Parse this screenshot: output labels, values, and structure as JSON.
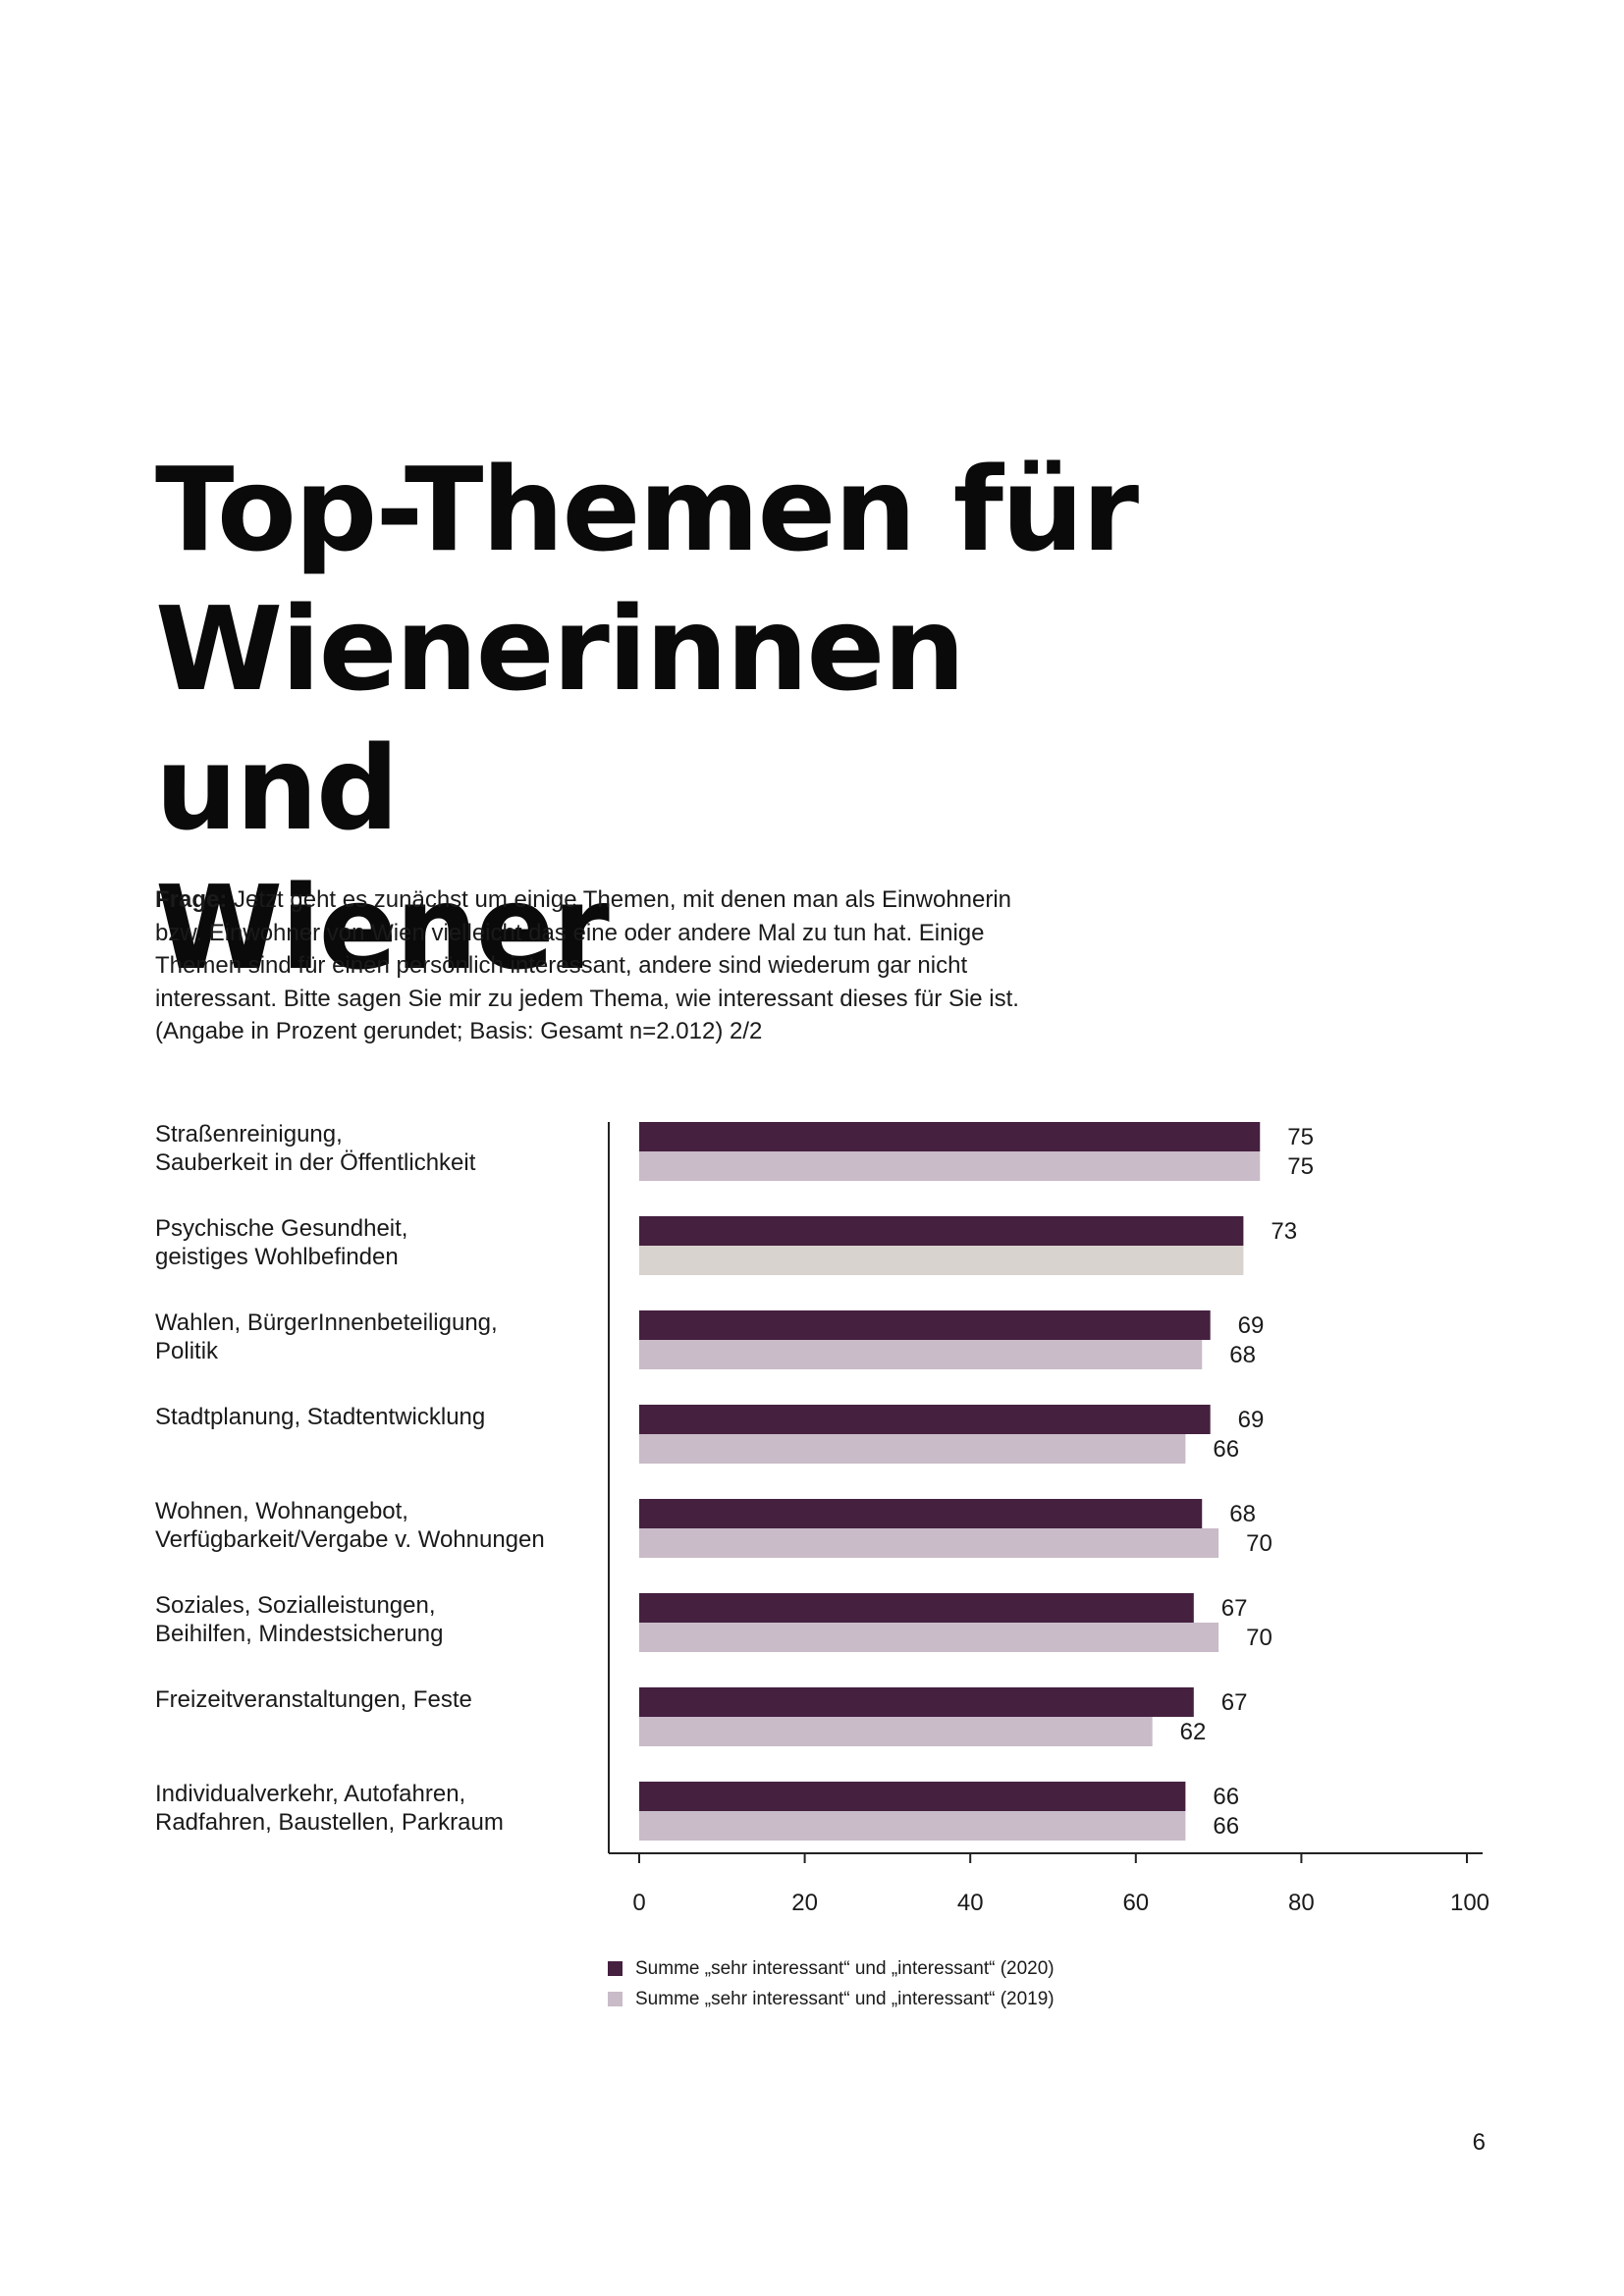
{
  "title": [
    "Top-Themen für",
    "Wienerinnen und",
    "Wiener"
  ],
  "question": {
    "label": "Frage:",
    "text": "Jetzt geht es zunächst um einige Themen, mit denen man als Einwohnerin bzw. Einwohner von Wien vielleicht das eine oder andere Mal zu tun hat. Einige Themen sind für einen persönlich interessant, andere sind wiederum gar nicht interessant. Bitte sagen Sie mir zu jedem Thema, wie interessant dieses für Sie ist. (Angabe in Prozent gerundet; Basis: Gesamt n=2.012) 2/2"
  },
  "chart_data": {
    "type": "bar",
    "orientation": "horizontal",
    "title": "",
    "xlabel": "",
    "ylabel": "",
    "xlim": [
      0,
      100
    ],
    "ticks": [
      0,
      20,
      40,
      60,
      80,
      100
    ],
    "grid": false,
    "legend_position": "bottom",
    "categories": [
      [
        "Straßenreinigung,",
        "Sauberkeit in der Öffentlichkeit"
      ],
      [
        "Psychische Gesundheit,",
        "geistiges Wohlbefinden"
      ],
      [
        "Wahlen, BürgerInnenbeteiligung,",
        "Politik"
      ],
      [
        "Stadtplanung, Stadtentwicklung"
      ],
      [
        "Wohnen, Wohnangebot,",
        "Verfügbarkeit/Vergabe v. Wohnungen"
      ],
      [
        "Soziales, Sozialleistungen,",
        "Beihilfen, Mindestsicherung"
      ],
      [
        "Freizeitveranstaltungen, Feste"
      ],
      [
        "Individualverkehr, Autofahren,",
        "Radfahren, Baustellen, Parkraum"
      ]
    ],
    "series": [
      {
        "name": "Summe „sehr interessant“ und „interessant“ (2020)",
        "color": "#45203f",
        "values": [
          75,
          73,
          69,
          69,
          68,
          67,
          67,
          66
        ],
        "labels": [
          "75",
          "73",
          "69",
          "69",
          "68",
          "67",
          "67",
          "66"
        ]
      },
      {
        "name": "Summe „sehr interessant“ und „interessant“ (2019)",
        "color": "#c9bbc8",
        "special_colors": {
          "1": "#d8d3cf"
        },
        "values": [
          75,
          73,
          68,
          66,
          70,
          70,
          62,
          66
        ],
        "labels": [
          "75",
          "",
          "68",
          "66",
          "70",
          "70",
          "62",
          "66"
        ]
      }
    ]
  },
  "page_number": "6"
}
